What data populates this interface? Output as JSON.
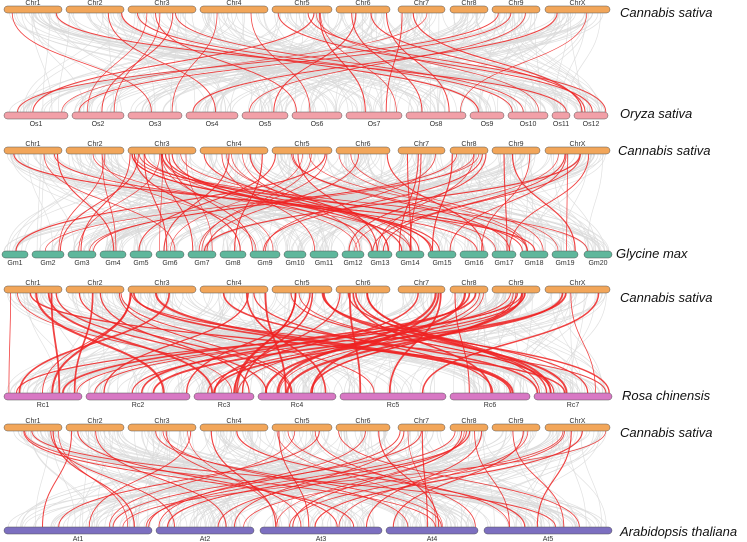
{
  "colors": {
    "cannabis": "#F2A65A",
    "oryza": "#F2A0A8",
    "glycine": "#5FB79C",
    "rosa": "#D878C4",
    "arabidopsis": "#7C6FC0",
    "background_links": "#d9d9d9",
    "syntenic_links": "#ee2222"
  },
  "panels": [
    {
      "top": {
        "species": "Cannabis sativa",
        "chromosomes": [
          "Chr1",
          "Chr2",
          "Chr3",
          "Chr4",
          "Chr5",
          "Chr6",
          "Chr7",
          "Chr8",
          "Chr9",
          "ChrX"
        ]
      },
      "bottom": {
        "species": "Oryza sativa",
        "chromosomes": [
          "Os1",
          "Os2",
          "Os3",
          "Os4",
          "Os5",
          "Os6",
          "Os7",
          "Os8",
          "Os9",
          "Os10",
          "Os11",
          "Os12"
        ]
      }
    },
    {
      "top": {
        "species": "Cannabis sativa",
        "chromosomes": [
          "Chr1",
          "Chr2",
          "Chr3",
          "Chr4",
          "Chr5",
          "Chr6",
          "Chr7",
          "Chr8",
          "Chr9",
          "ChrX"
        ]
      },
      "bottom": {
        "species": "Glycine max",
        "chromosomes": [
          "Gm1",
          "Gm2",
          "Gm3",
          "Gm4",
          "Gm5",
          "Gm6",
          "Gm7",
          "Gm8",
          "Gm9",
          "Gm10",
          "Gm11",
          "Gm12",
          "Gm13",
          "Gm14",
          "Gm15",
          "Gm16",
          "Gm17",
          "Gm18",
          "Gm19",
          "Gm20"
        ]
      }
    },
    {
      "top": {
        "species": "Cannabis sativa",
        "chromosomes": [
          "Chr1",
          "Chr2",
          "Chr3",
          "Chr4",
          "Chr5",
          "Chr6",
          "Chr7",
          "Chr8",
          "Chr9",
          "ChrX"
        ]
      },
      "bottom": {
        "species": "Rosa chinensis",
        "chromosomes": [
          "Rc1",
          "Rc2",
          "Rc3",
          "Rc4",
          "Rc5",
          "Rc6",
          "Rc7"
        ]
      }
    },
    {
      "top": {
        "species": "Cannabis sativa",
        "chromosomes": [
          "Chr1",
          "Chr2",
          "Chr3",
          "Chr4",
          "Chr5",
          "Chr6",
          "Chr7",
          "Chr8",
          "Chr9",
          "ChrX"
        ]
      },
      "bottom": {
        "species": "Arabidopsis thaliana",
        "chromosomes": [
          "At1",
          "At2",
          "At3",
          "At4",
          "At5"
        ]
      }
    }
  ]
}
